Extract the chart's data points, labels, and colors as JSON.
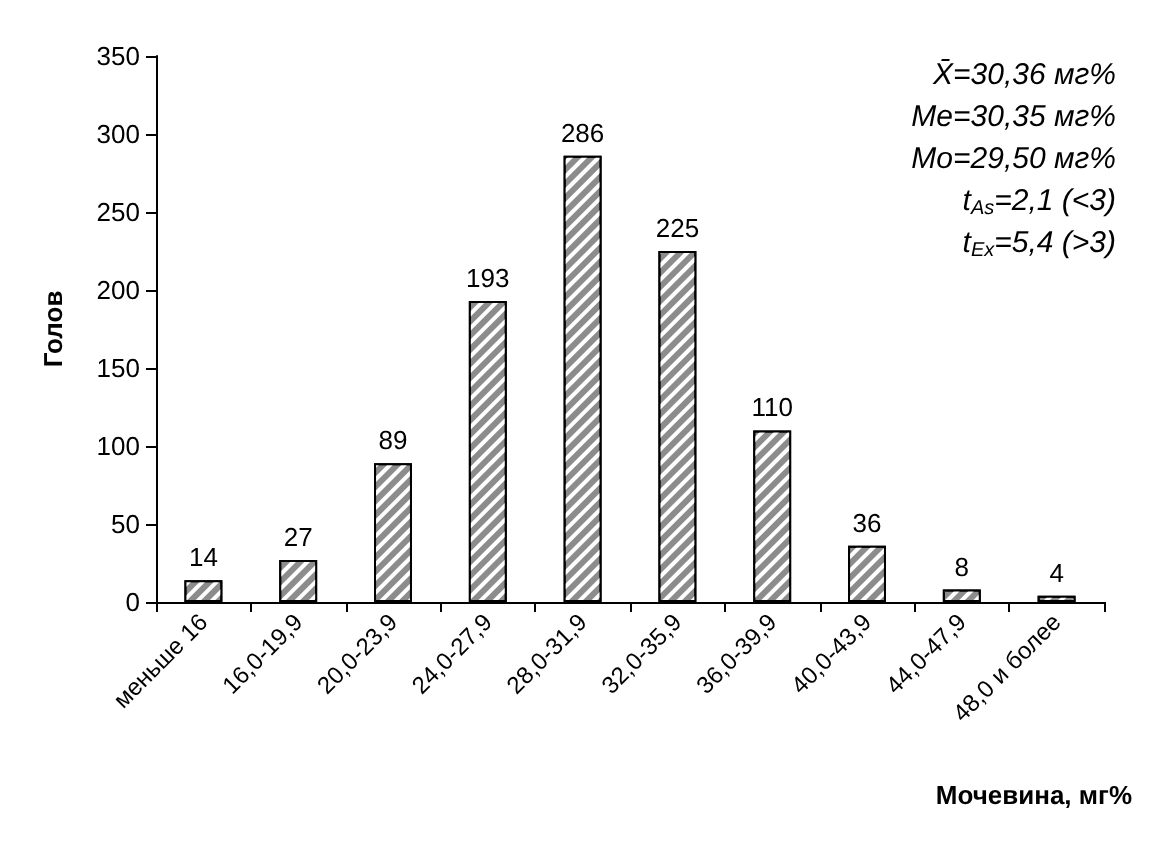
{
  "chart_data": {
    "type": "bar",
    "xlabel": "Мочевина, мг%",
    "ylabel": "Голов",
    "categories": [
      "меньше 16",
      "16,0-19,9",
      "20,0-23,9",
      "24,0-27,9",
      "28,0-31,9",
      "32,0-35,9",
      "36,0-39,9",
      "40,0-43,9",
      "44,0-47,9",
      "48,0 и более"
    ],
    "values": [
      14,
      27,
      89,
      193,
      286,
      225,
      110,
      36,
      8,
      4
    ],
    "color": "#8c8c8c",
    "ylim": [
      0,
      350
    ],
    "yticks": [
      0,
      50,
      100,
      150,
      200,
      250,
      300,
      350
    ],
    "data_labels": true,
    "grid": false,
    "annotations": [
      "X̄=30,36 мг%",
      "Me=30,35 мг%",
      "Mo=29,50 мг%",
      "t$_{As}$=2,1 (<3)",
      "t$_{Ex}$=5,4 (>3)"
    ]
  }
}
